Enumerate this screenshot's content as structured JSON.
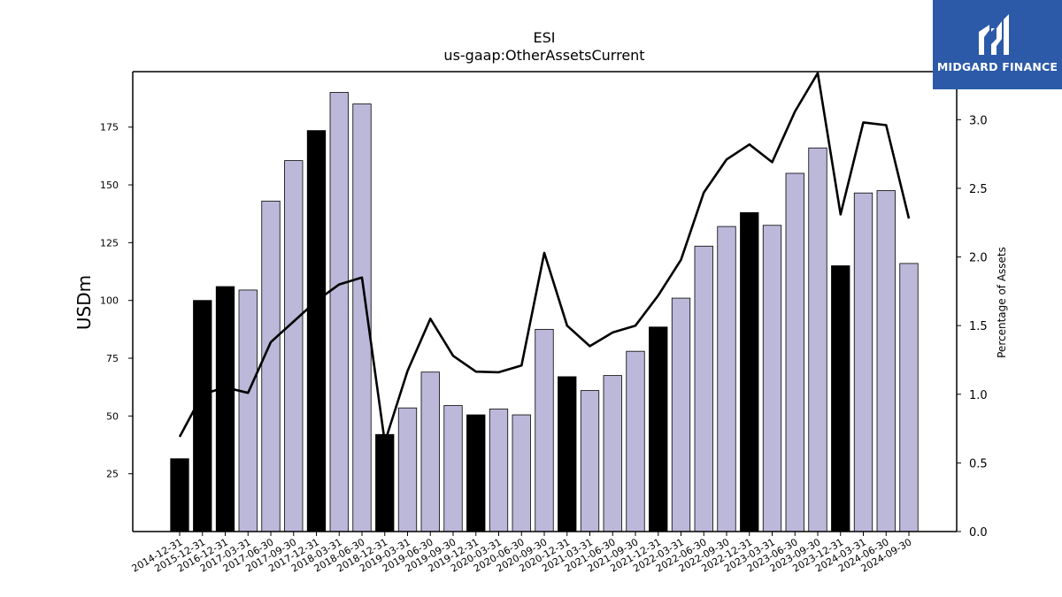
{
  "logo": {
    "text": "MIDGARD FINANCE"
  },
  "chart_data": {
    "type": "bar",
    "title": "ESI",
    "subtitle": "us-gaap:OtherAssetsCurrent",
    "ylabel": "USDm",
    "y2label": "Percentage of Assets",
    "ylim": [
      0,
      199
    ],
    "y2lim": [
      0,
      3.35
    ],
    "yticks": [
      25,
      50,
      75,
      100,
      125,
      150,
      175
    ],
    "y2ticks": [
      "0.0",
      "0.5",
      "1.0",
      "1.5",
      "2.0",
      "2.5",
      "3.0"
    ],
    "colors": {
      "annual": "#000000",
      "quarter": "#bcb8da",
      "line": "#000000"
    },
    "categories": [
      "2014-12-31",
      "2015-12-31",
      "2016-12-31",
      "2017-03-31",
      "2017-06-30",
      "2017-09-30",
      "2017-12-31",
      "2018-03-31",
      "2018-06-30",
      "2018-12-31",
      "2019-03-31",
      "2019-06-30",
      "2019-09-30",
      "2019-12-31",
      "2020-03-31",
      "2020-06-30",
      "2020-09-30",
      "2020-12-31",
      "2021-03-31",
      "2021-06-30",
      "2021-09-30",
      "2021-12-31",
      "2022-03-31",
      "2022-06-30",
      "2022-09-30",
      "2022-12-31",
      "2023-03-31",
      "2023-06-30",
      "2023-09-30",
      "2023-12-31",
      "2024-03-31",
      "2024-06-30",
      "2024-09-30"
    ],
    "bar_kind": [
      "annual",
      "annual",
      "annual",
      "quarter",
      "quarter",
      "quarter",
      "annual",
      "quarter",
      "quarter",
      "annual",
      "quarter",
      "quarter",
      "quarter",
      "annual",
      "quarter",
      "quarter",
      "quarter",
      "annual",
      "quarter",
      "quarter",
      "quarter",
      "annual",
      "quarter",
      "quarter",
      "quarter",
      "annual",
      "quarter",
      "quarter",
      "quarter",
      "annual",
      "quarter",
      "quarter",
      "quarter"
    ],
    "values": [
      31.5,
      100,
      106,
      104.5,
      143,
      160.5,
      173.5,
      190,
      185,
      42,
      53.5,
      69,
      54.5,
      50.5,
      53,
      50.5,
      87.5,
      67,
      61,
      67.5,
      78,
      88.5,
      101,
      123.5,
      132,
      138,
      132.5,
      155,
      166,
      115,
      146.5,
      147.5,
      116
    ],
    "pct_assets": [
      0.69,
      1.0,
      1.05,
      1.01,
      1.38,
      1.53,
      1.68,
      1.8,
      1.85,
      0.65,
      1.17,
      1.55,
      1.28,
      1.165,
      1.16,
      1.21,
      2.03,
      1.5,
      1.35,
      1.45,
      1.5,
      1.72,
      1.98,
      2.47,
      2.71,
      2.82,
      2.69,
      3.06,
      3.34,
      2.31,
      2.98,
      2.96,
      2.28
    ]
  }
}
